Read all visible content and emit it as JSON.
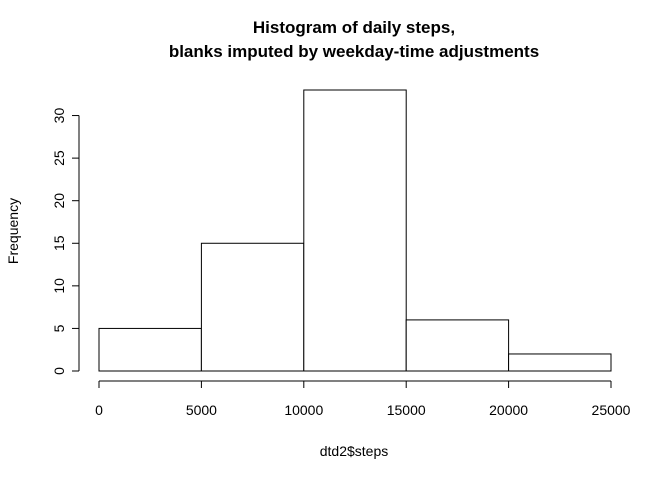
{
  "chart_data": {
    "type": "bar",
    "title": "Histogram of daily steps,",
    "subtitle": "blanks imputed by weekday-time adjustments",
    "xlabel": "dtd2$steps",
    "ylabel": "Frequency",
    "bins": [
      {
        "from": 0,
        "to": 5000,
        "count": 5
      },
      {
        "from": 5000,
        "to": 10000,
        "count": 15
      },
      {
        "from": 10000,
        "to": 15000,
        "count": 33
      },
      {
        "from": 15000,
        "to": 20000,
        "count": 6
      },
      {
        "from": 20000,
        "to": 25000,
        "count": 2
      }
    ],
    "xlim": [
      0,
      25000
    ],
    "ylim": [
      0,
      33
    ],
    "x_ticks": [
      "0",
      "5000",
      "10000",
      "15000",
      "20000",
      "25000"
    ],
    "y_ticks": [
      "0",
      "5",
      "10",
      "15",
      "20",
      "25",
      "30"
    ],
    "grid": false,
    "legend": "none",
    "bar_fill": "#ffffff",
    "bar_stroke": "#000000"
  }
}
